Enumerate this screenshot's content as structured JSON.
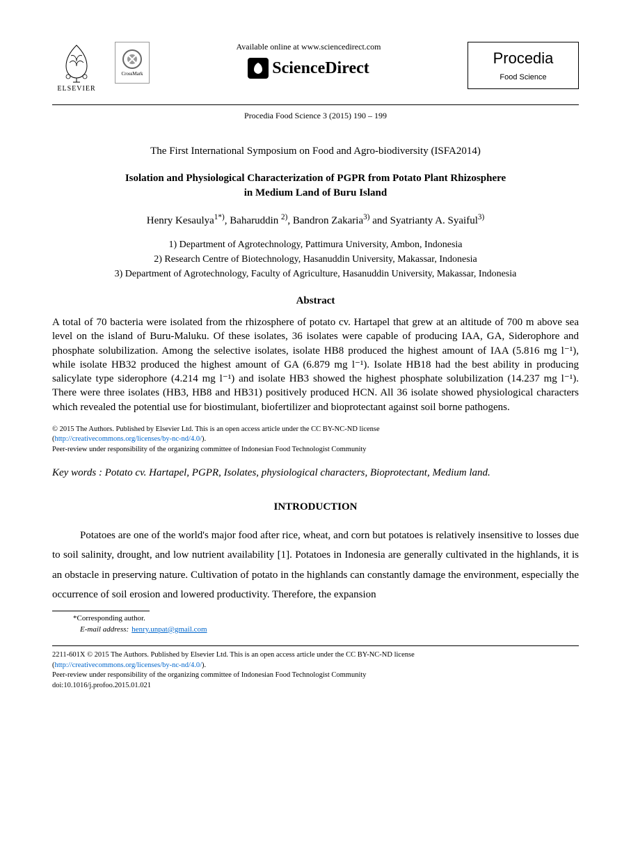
{
  "header": {
    "elsevier_label": "ELSEVIER",
    "crossmark_label": "CrossMark",
    "available_text": "Available online at www.sciencedirect.com",
    "sciencedirect_label": "ScienceDirect",
    "procedia_title": "Procedia",
    "procedia_subtitle": "Food Science",
    "citation": "Procedia Food Science 3 (2015) 190 – 199"
  },
  "symposium": "The First International Symposium on Food and Agro-biodiversity (ISFA2014)",
  "title_line1": "Isolation and Physiological Characterization of PGPR from Potato Plant Rhizosphere",
  "title_line2": "in Medium Land of Buru Island",
  "authors_html": "Henry Kesaulya<sup>1*)</sup>, Baharuddin <sup>2)</sup>, Bandron Zakaria<sup>3)</sup> and Syatrianty A. Syaiful<sup>3)</sup>",
  "affiliations": {
    "a1": "1) Department of Agrotechnology, Pattimura University, Ambon, Indonesia",
    "a2": "2) Research Centre of Biotechnology, Hasanuddin University, Makassar, Indonesia",
    "a3": "3) Department of Agrotechnology, Faculty of Agriculture, Hasanuddin University, Makassar, Indonesia"
  },
  "abstract_heading": "Abstract",
  "abstract_text": "A total of 70 bacteria were isolated from the rhizosphere of potato cv. Hartapel  that grew at an altitude of 700 m above sea level on the island of Buru-Maluku. Of these isolates, 36 isolates were capable of producing IAA, GA, Siderophore and phosphate solubilization. Among the selective isolates, isolate HB8  produced  the  highest  amount of IAA (5.816 mg l⁻¹), while isolate HB32 produced the highest amount of GA (6.879 mg l⁻¹).  Isolate HB18 had the best ability in producing salicylate type siderophore (4.214 mg l⁻¹) and isolate HB3 showed the highest phosphate solubilization (14.237 mg l⁻¹).  There were three isolates (HB3, HB8 and HB31) positively produced HCN.  All 36 isolate showed physiological characters which revealed the potential use for biostimulant, biofertilizer and bioprotectant against soil borne pathogens.",
  "license": {
    "line1": "© 2015 The Authors. Published by Elsevier Ltd. This is an open access article under the CC BY-NC-ND license",
    "link": "http://creativecommons.org/licenses/by-nc-nd/4.0/",
    "line2": "Peer-review under responsibility of the organizing committee of Indonesian Food Technologist Community"
  },
  "keywords": "Key words : Potato cv. Hartapel, PGPR, Isolates, physiological characters, Bioprotectant, Medium land.",
  "intro_heading": "INTRODUCTION",
  "intro_text": "Potatoes are one of the world's major food after rice, wheat, and corn but potatoes is relatively insensitive to losses due to soil salinity, drought, and low nutrient availability [1]. Potatoes in Indonesia are generally cultivated in the highlands, it is an obstacle in preserving nature. Cultivation of potato in the highlands can constantly damage the environment, especially the occurrence of soil erosion and lowered productivity. Therefore, the expansion",
  "corresponding": {
    "label": "*Corresponding author.",
    "email_label": "E-mail address:",
    "email": "henry.unpat@gmail.com"
  },
  "footer": {
    "line1": "2211-601X © 2015 The Authors. Published by Elsevier Ltd. This is an open access article under the CC BY-NC-ND license",
    "link": "http://creativecommons.org/licenses/by-nc-nd/4.0/",
    "line2": "Peer-review under responsibility of the organizing committee of Indonesian Food Technologist Community",
    "doi": "doi:10.1016/j.profoo.2015.01.021"
  },
  "colors": {
    "text": "#000000",
    "link": "#0066cc",
    "background": "#ffffff"
  }
}
